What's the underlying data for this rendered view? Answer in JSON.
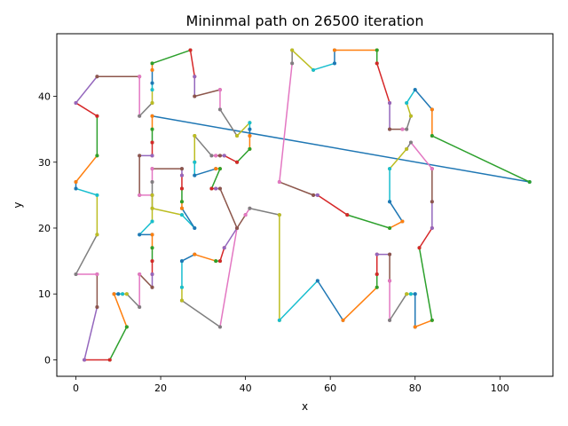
{
  "chart_data": {
    "type": "line",
    "title": "Mininmal path on 26500 iteration",
    "xlabel": "x",
    "ylabel": "y",
    "xlim": [
      -4.5,
      112.5
    ],
    "ylim": [
      -2.5,
      49.5
    ],
    "xticks": [
      0,
      20,
      40,
      60,
      80,
      100
    ],
    "yticks": [
      0,
      10,
      20,
      30,
      40
    ],
    "grid": false,
    "legend": "none",
    "marker": "dot",
    "colors": [
      "#1f77b4",
      "#ff7f0e",
      "#2ca02c",
      "#d62728",
      "#9467bd",
      "#8c564b",
      "#e377c2",
      "#7f7f7f",
      "#bcbd22",
      "#17becf"
    ],
    "path": [
      [
        107,
        27
      ],
      [
        18,
        37
      ],
      [
        18,
        35
      ],
      [
        18,
        33
      ],
      [
        18,
        31
      ],
      [
        15,
        31
      ],
      [
        15,
        25
      ],
      [
        18,
        25
      ],
      [
        18,
        23
      ],
      [
        25,
        22
      ],
      [
        28,
        20
      ],
      [
        25,
        23
      ],
      [
        25,
        24
      ],
      [
        25,
        26
      ],
      [
        25,
        28
      ],
      [
        25,
        29
      ],
      [
        18,
        29
      ],
      [
        18,
        27
      ],
      [
        18,
        25
      ],
      [
        18,
        21
      ],
      [
        15,
        19
      ],
      [
        18,
        19
      ],
      [
        18,
        17
      ],
      [
        18,
        15
      ],
      [
        18,
        13
      ],
      [
        18,
        11
      ],
      [
        15,
        13
      ],
      [
        15,
        8
      ],
      [
        12,
        10
      ],
      [
        11,
        10
      ],
      [
        10,
        10
      ],
      [
        9,
        10
      ],
      [
        12,
        5
      ],
      [
        8,
        0
      ],
      [
        2,
        0
      ],
      [
        5,
        8
      ],
      [
        5,
        13
      ],
      [
        0,
        13
      ],
      [
        5,
        19
      ],
      [
        5,
        25
      ],
      [
        0,
        26
      ],
      [
        0,
        27
      ],
      [
        5,
        31
      ],
      [
        5,
        37
      ],
      [
        0,
        39
      ],
      [
        5,
        43
      ],
      [
        15,
        43
      ],
      [
        15,
        37
      ],
      [
        18,
        39
      ],
      [
        18,
        41
      ],
      [
        18,
        42
      ],
      [
        18,
        44
      ],
      [
        18,
        45
      ],
      [
        27,
        47
      ],
      [
        28,
        43
      ],
      [
        28,
        40
      ],
      [
        34,
        41
      ],
      [
        34,
        38
      ],
      [
        38,
        34
      ],
      [
        41,
        36
      ],
      [
        41,
        35
      ],
      [
        41,
        34
      ],
      [
        41,
        32
      ],
      [
        38,
        30
      ],
      [
        35,
        31
      ],
      [
        34,
        31
      ],
      [
        33,
        31
      ],
      [
        32,
        31
      ],
      [
        28,
        34
      ],
      [
        28,
        30
      ],
      [
        28,
        28
      ],
      [
        33,
        29
      ],
      [
        34,
        29
      ],
      [
        32,
        26
      ],
      [
        33,
        26
      ],
      [
        34,
        26
      ],
      [
        38,
        20
      ],
      [
        34,
        5
      ],
      [
        25,
        9
      ],
      [
        25,
        11
      ],
      [
        25,
        15
      ],
      [
        28,
        16
      ],
      [
        33,
        15
      ],
      [
        34,
        15
      ],
      [
        35,
        17
      ],
      [
        38,
        20
      ],
      [
        40,
        22
      ],
      [
        41,
        23
      ],
      [
        48,
        22
      ],
      [
        48,
        6
      ],
      [
        57,
        12
      ],
      [
        63,
        6
      ],
      [
        71,
        11
      ],
      [
        71,
        13
      ],
      [
        71,
        16
      ],
      [
        74,
        16
      ],
      [
        74,
        12
      ],
      [
        74,
        6
      ],
      [
        78,
        10
      ],
      [
        79,
        10
      ],
      [
        80,
        10
      ],
      [
        80,
        5
      ],
      [
        84,
        6
      ],
      [
        81,
        17
      ],
      [
        84,
        20
      ],
      [
        84,
        24
      ],
      [
        84,
        29
      ],
      [
        79,
        33
      ],
      [
        78,
        32
      ],
      [
        74,
        29
      ],
      [
        74,
        24
      ],
      [
        77,
        21
      ],
      [
        74,
        20
      ],
      [
        64,
        22
      ],
      [
        57,
        25
      ],
      [
        56,
        25
      ],
      [
        48,
        27
      ],
      [
        51,
        45
      ],
      [
        51,
        47
      ],
      [
        56,
        44
      ],
      [
        61,
        45
      ],
      [
        61,
        47
      ],
      [
        71,
        47
      ],
      [
        71,
        45
      ],
      [
        74,
        39
      ],
      [
        74,
        35
      ],
      [
        77,
        35
      ],
      [
        78,
        35
      ],
      [
        79,
        37
      ],
      [
        78,
        39
      ],
      [
        80,
        41
      ],
      [
        84,
        38
      ],
      [
        84,
        34
      ],
      [
        107,
        27
      ]
    ]
  }
}
